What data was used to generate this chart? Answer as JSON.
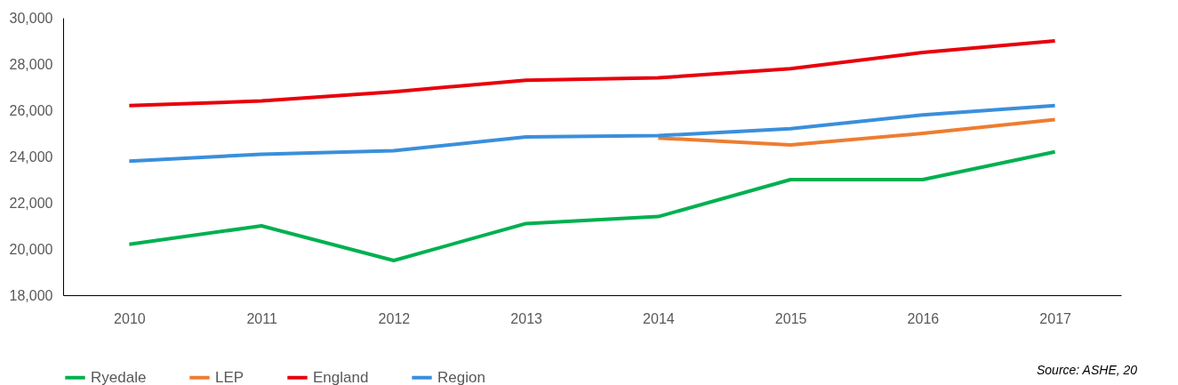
{
  "chart_data": {
    "type": "line",
    "categories": [
      "2010",
      "2011",
      "2012",
      "2013",
      "2014",
      "2015",
      "2016",
      "2017"
    ],
    "series": [
      {
        "name": "Ryedale",
        "color": "#00b050",
        "values": [
          20200,
          21000,
          19500,
          21100,
          21400,
          23000,
          23000,
          24200
        ]
      },
      {
        "name": "LEP",
        "color": "#ed7d31",
        "values": [
          null,
          null,
          null,
          null,
          24800,
          24500,
          25000,
          25600
        ]
      },
      {
        "name": "England",
        "color": "#e8000b",
        "values": [
          26200,
          26400,
          26800,
          27300,
          27400,
          27800,
          28500,
          29000
        ]
      },
      {
        "name": "Region",
        "color": "#3a8fdb",
        "values": [
          23800,
          24100,
          24250,
          24850,
          24900,
          25200,
          25800,
          26200
        ]
      }
    ],
    "ylim": [
      18000,
      30000
    ],
    "yticks": [
      {
        "value": 18000,
        "label": "18,000"
      },
      {
        "value": 20000,
        "label": "20,000"
      },
      {
        "value": 22000,
        "label": "22,000"
      },
      {
        "value": 24000,
        "label": "24,000"
      },
      {
        "value": 26000,
        "label": "26,000"
      },
      {
        "value": 28000,
        "label": "28,000"
      },
      {
        "value": 30000,
        "label": "30,000"
      }
    ],
    "grid": false,
    "legend": "bottom",
    "marker": "none",
    "line_style": "solid",
    "annotations": [
      "Source: ASHE, 20"
    ]
  }
}
